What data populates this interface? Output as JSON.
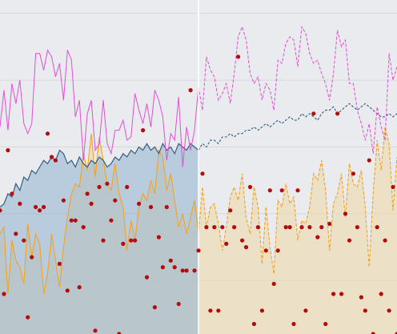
{
  "chart_data": {
    "type": "line",
    "title": "",
    "xlabel": "",
    "ylabel": "",
    "x": [
      0,
      1,
      2,
      3,
      4,
      5,
      6,
      7,
      8,
      9,
      10,
      11,
      12,
      13,
      14,
      15,
      16,
      17,
      18,
      19,
      20,
      21,
      22,
      23,
      24,
      25,
      26,
      27,
      28,
      29,
      30,
      31,
      32,
      33,
      34,
      35,
      36,
      37,
      38,
      39,
      40,
      41,
      42,
      43,
      44,
      45,
      46,
      47,
      48,
      49,
      50,
      51,
      52,
      53,
      54,
      55,
      56,
      57,
      58,
      59,
      60,
      61,
      62,
      63,
      64,
      65,
      66,
      67,
      68,
      69,
      70,
      71,
      72,
      73,
      74,
      75,
      76,
      77,
      78,
      79,
      80,
      81,
      82,
      83,
      84,
      85,
      86,
      87,
      88,
      89,
      90,
      91,
      92,
      93,
      94,
      95,
      96,
      97,
      98,
      99,
      100
    ],
    "xlim": [
      0,
      100
    ],
    "ylim": [
      0,
      100
    ],
    "forecast_start": 50,
    "grid": {
      "horizontal": true,
      "vertical": false,
      "values": [
        16,
        36,
        56,
        76,
        96
      ]
    },
    "legend": "none",
    "colors": {
      "background": "#e9ebee",
      "grid": "#d5d7db",
      "divider": "#ffffff",
      "blue_line": "#355d7e",
      "blue_fill": "#8fb3cf",
      "orange_line": "#f5a21f",
      "orange_fill": "#efd8ae",
      "magenta_line": "#e34ed5",
      "points": "#b40c0c"
    },
    "series": [
      {
        "kind": "area",
        "color_key": "blue",
        "values": [
          38,
          39,
          42,
          41,
          45,
          43,
          47,
          46,
          49,
          48,
          50,
          52,
          51,
          53,
          52,
          55,
          54,
          51,
          52,
          50,
          53,
          51,
          50,
          52,
          51,
          53,
          52,
          50,
          51,
          53,
          52,
          54,
          53,
          55,
          54,
          56,
          55,
          57,
          55,
          56,
          54,
          57,
          55,
          56,
          54,
          57,
          56,
          55,
          57,
          56,
          55,
          57,
          56,
          58,
          58,
          57,
          59,
          59,
          60,
          59,
          60,
          60,
          61,
          61,
          62,
          61,
          62,
          63,
          62,
          63,
          64,
          63,
          64,
          65,
          64,
          64,
          66,
          65,
          66,
          65,
          64,
          66,
          67,
          67,
          68,
          66,
          67,
          68,
          69,
          68,
          67,
          68,
          69,
          68,
          67,
          66,
          65,
          65,
          66,
          65,
          66
        ]
      },
      {
        "kind": "area",
        "color_key": "orange",
        "values": [
          30,
          32,
          12,
          28,
          22,
          20,
          15,
          33,
          23,
          30,
          27,
          12,
          18,
          30,
          22,
          14,
          26,
          35,
          42,
          45,
          44,
          54,
          49,
          60,
          47,
          59,
          52,
          45,
          43,
          51,
          42,
          38,
          25,
          34,
          28,
          38,
          42,
          40,
          46,
          42,
          55,
          53,
          43,
          48,
          40,
          32,
          36,
          30,
          35,
          40,
          30,
          44,
          32,
          38,
          39,
          33,
          25,
          32,
          41,
          44,
          40,
          48,
          35,
          30,
          44,
          38,
          21,
          38,
          26,
          18,
          40,
          38,
          45,
          39,
          41,
          28,
          34,
          33,
          38,
          48,
          46,
          52,
          43,
          25,
          39,
          42,
          48,
          35,
          51,
          45,
          44,
          49,
          38,
          20,
          42,
          58,
          49,
          62,
          57,
          37,
          53
        ]
      },
      {
        "kind": "line",
        "color_key": "magenta",
        "values": [
          62,
          73,
          61,
          75,
          69,
          76,
          63,
          60,
          63,
          84,
          84,
          79,
          85,
          83,
          77,
          81,
          70,
          85,
          82,
          65,
          70,
          52,
          66,
          70,
          55,
          57,
          70,
          57,
          54,
          61,
          61,
          64,
          58,
          59,
          72,
          67,
          63,
          69,
          62,
          73,
          70,
          65,
          52,
          60,
          58,
          71,
          50,
          62,
          55,
          61,
          74,
          67,
          83,
          79,
          77,
          70,
          72,
          75,
          69,
          78,
          89,
          92,
          88,
          78,
          75,
          77,
          70,
          75,
          73,
          67,
          82,
          81,
          87,
          89,
          88,
          80,
          92,
          90,
          84,
          81,
          82,
          78,
          75,
          70,
          78,
          91,
          86,
          88,
          75,
          75,
          67,
          63,
          58,
          63,
          54,
          68,
          62,
          58,
          84,
          76,
          80
        ]
      }
    ],
    "points": [
      [
        0,
        37
      ],
      [
        1,
        12
      ],
      [
        2,
        55
      ],
      [
        3,
        42
      ],
      [
        4,
        30
      ],
      [
        5,
        39
      ],
      [
        6,
        28
      ],
      [
        7,
        5
      ],
      [
        8,
        23
      ],
      [
        9,
        38
      ],
      [
        10,
        37
      ],
      [
        11,
        38
      ],
      [
        12,
        60
      ],
      [
        13,
        53
      ],
      [
        14,
        52
      ],
      [
        15,
        21
      ],
      [
        16,
        40
      ],
      [
        17,
        13
      ],
      [
        18,
        34
      ],
      [
        19,
        34
      ],
      [
        20,
        14
      ],
      [
        21,
        32
      ],
      [
        22,
        42
      ],
      [
        23,
        39
      ],
      [
        24,
        1
      ],
      [
        25,
        44
      ],
      [
        26,
        28
      ],
      [
        27,
        45
      ],
      [
        28,
        34
      ],
      [
        29,
        40
      ],
      [
        30,
        0
      ],
      [
        31,
        27
      ],
      [
        32,
        44
      ],
      [
        33,
        28
      ],
      [
        34,
        28
      ],
      [
        35,
        39
      ],
      [
        36,
        61
      ],
      [
        37,
        17
      ],
      [
        38,
        38
      ],
      [
        39,
        8
      ],
      [
        40,
        29
      ],
      [
        41,
        20
      ],
      [
        42,
        38
      ],
      [
        43,
        22
      ],
      [
        44,
        20
      ],
      [
        45,
        9
      ],
      [
        46,
        19
      ],
      [
        47,
        19
      ],
      [
        48,
        73
      ],
      [
        49,
        19
      ],
      [
        50,
        25
      ],
      [
        51,
        48
      ],
      [
        52,
        32
      ],
      [
        53,
        7
      ],
      [
        54,
        32
      ],
      [
        55,
        7
      ],
      [
        56,
        32
      ],
      [
        57,
        27
      ],
      [
        58,
        37
      ],
      [
        59,
        32
      ],
      [
        60,
        83
      ],
      [
        61,
        28
      ],
      [
        62,
        26
      ],
      [
        63,
        44
      ],
      [
        64,
        3
      ],
      [
        65,
        32
      ],
      [
        66,
        7
      ],
      [
        67,
        25
      ],
      [
        68,
        43
      ],
      [
        69,
        15
      ],
      [
        70,
        25
      ],
      [
        71,
        43
      ],
      [
        72,
        32
      ],
      [
        73,
        32
      ],
      [
        74,
        3
      ],
      [
        75,
        43
      ],
      [
        76,
        32
      ],
      [
        77,
        7
      ],
      [
        78,
        32
      ],
      [
        79,
        66
      ],
      [
        80,
        29
      ],
      [
        81,
        32
      ],
      [
        82,
        3
      ],
      [
        83,
        33
      ],
      [
        84,
        12
      ],
      [
        85,
        66
      ],
      [
        86,
        12
      ],
      [
        87,
        36
      ],
      [
        88,
        28
      ],
      [
        89,
        48
      ],
      [
        90,
        32
      ],
      [
        91,
        11
      ],
      [
        92,
        7
      ],
      [
        93,
        52
      ],
      [
        94,
        0
      ],
      [
        95,
        32
      ],
      [
        96,
        12
      ],
      [
        97,
        28
      ],
      [
        98,
        7
      ],
      [
        99,
        44
      ],
      [
        100,
        0
      ]
    ]
  }
}
